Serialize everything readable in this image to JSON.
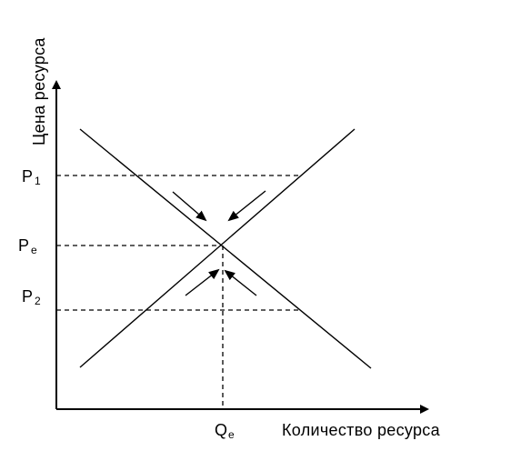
{
  "axes": {
    "y_title": "Цена ресурса",
    "x_title": "Количество ресурса"
  },
  "price_labels": {
    "p1": {
      "base": "P",
      "sub": "1"
    },
    "pe": {
      "base": "P",
      "sub": "e"
    },
    "p2": {
      "base": "P",
      "sub": "2"
    }
  },
  "quantity_label": {
    "base": "Q",
    "sub": "e"
  },
  "curves": {
    "demand": "downward-sloping",
    "supply": "upward-sloping"
  },
  "arrows": {
    "above_equilibrium": 2,
    "below_equilibrium": 2
  }
}
